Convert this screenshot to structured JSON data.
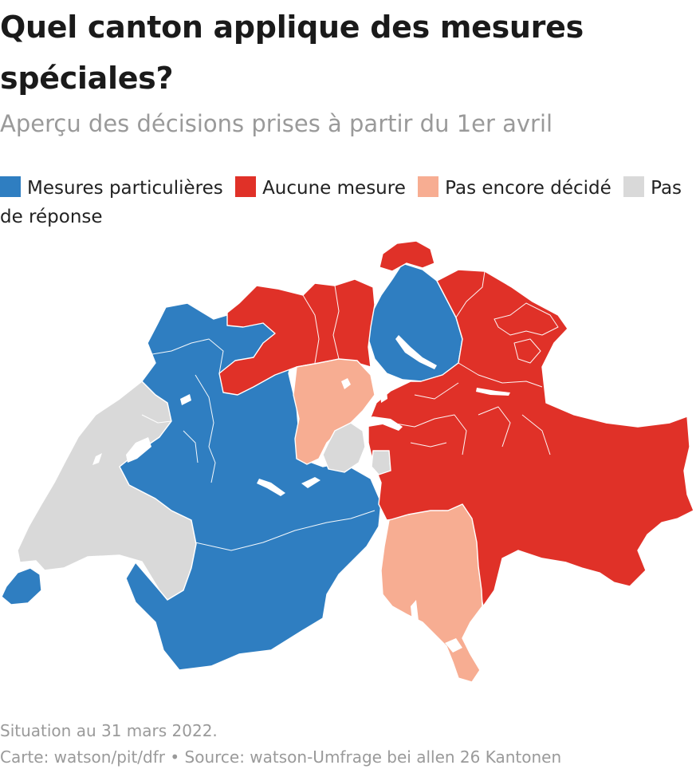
{
  "title": "Quel canton applique des mesures spéciales?",
  "subtitle": "Aperçu des décisions prises à partir du 1er avril",
  "legend": [
    {
      "label": "Mesures particulières",
      "color": "#2f7ec1"
    },
    {
      "label": "Aucune mesure",
      "color": "#e03128"
    },
    {
      "label": "Pas encore décidé",
      "color": "#f7ad92"
    },
    {
      "label": "Pas de réponse",
      "color": "#d9d9d9"
    }
  ],
  "colors": {
    "mesures": "#2f7ec1",
    "aucune": "#e03128",
    "pas_encore": "#f7ad92",
    "pas_de_reponse": "#d9d9d9",
    "borders": "#ffffff",
    "lakes": "#ffffff"
  },
  "footer": {
    "situation": "Situation au 31 mars 2022.",
    "source": "Carte: watson/pit/dfr • Source: watson-Umfrage bei allen 26 Kantonen"
  }
}
